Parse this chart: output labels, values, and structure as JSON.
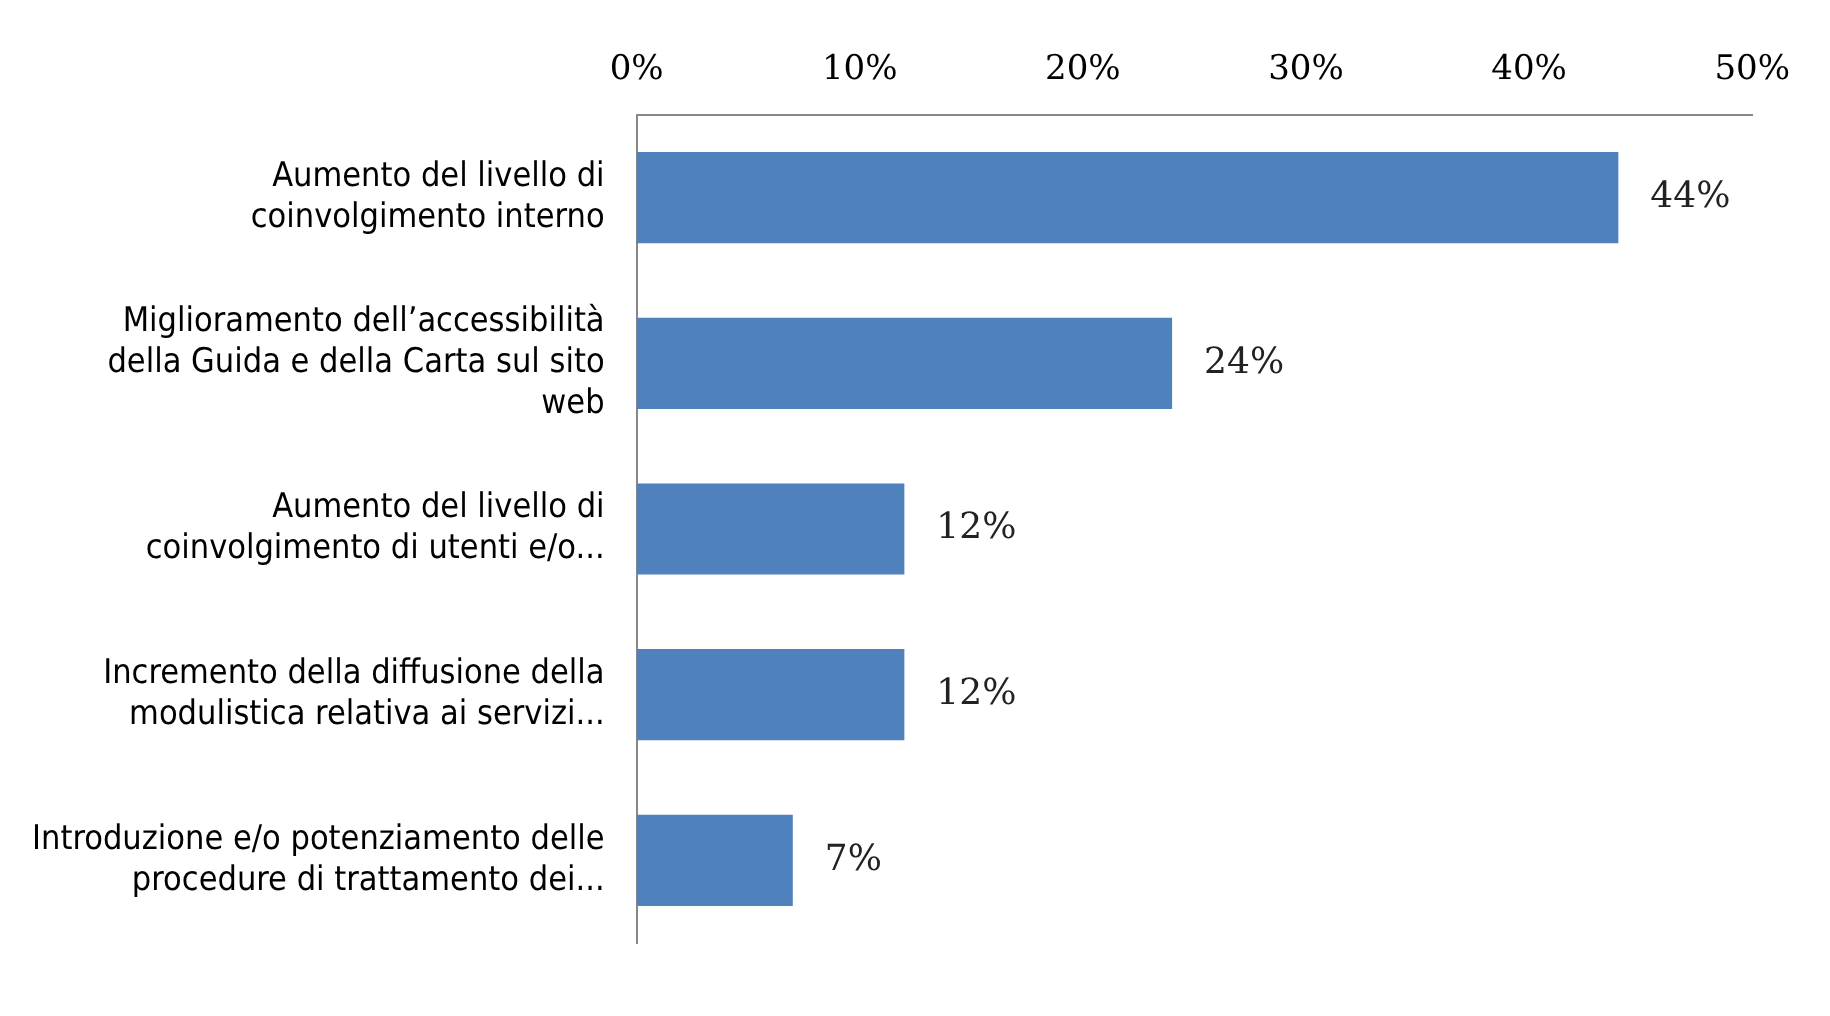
{
  "chart_data": {
    "type": "bar",
    "orientation": "horizontal",
    "categories": [
      "Aumento del livello di coinvolgimento interno",
      "Miglioramento dell’accessibilità della Guida e della Carta sul sito web",
      "Aumento del livello di coinvolgimento di utenti e/o...",
      "Incremento della diffusione della modulistica relativa ai servizi...",
      "Introduzione e/o potenziamento delle procedure di trattamento dei..."
    ],
    "values": [
      44,
      24,
      12,
      12,
      7
    ],
    "color": "#4f81bd",
    "xlim": [
      0,
      50
    ],
    "xticks": [
      {
        "value": 0,
        "label": "0%"
      },
      {
        "value": 10,
        "label": "10%"
      },
      {
        "value": 20,
        "label": "20%"
      },
      {
        "value": 30,
        "label": "30%"
      },
      {
        "value": 40,
        "label": "40%"
      },
      {
        "value": 50,
        "label": "50%"
      }
    ],
    "value_labels": [
      "44%",
      "24%",
      "12%",
      "12%",
      "7%"
    ],
    "grid": false,
    "legend": false
  }
}
